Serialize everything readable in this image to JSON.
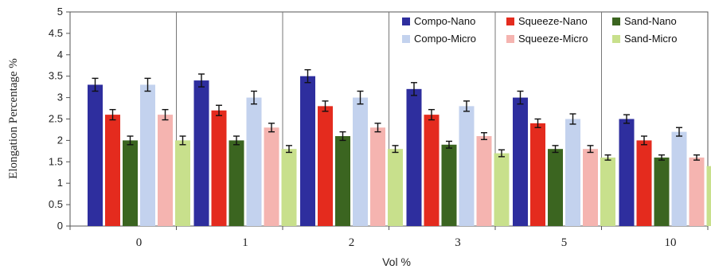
{
  "chart_data": {
    "type": "bar",
    "title": "",
    "xlabel": "Vol %",
    "ylabel": "Elongation Percentage %",
    "ylim": [
      0,
      5
    ],
    "yticks": [
      "0",
      "0.5",
      "1",
      "1.5",
      "2",
      "2.5",
      "3",
      "3.5",
      "4",
      "4.5",
      "5"
    ],
    "ytick_values": [
      0,
      0.5,
      1,
      1.5,
      2,
      2.5,
      3,
      3.5,
      4,
      4.5,
      5
    ],
    "grid": "vertical separators between categories",
    "legend_position": "top-right",
    "categories": [
      "0",
      "1",
      "2",
      "3",
      "5",
      "10"
    ],
    "series": [
      {
        "name": "Compo-Nano",
        "color": "#2e2e9e",
        "values": [
          3.3,
          3.4,
          3.5,
          3.2,
          3.0,
          2.5
        ],
        "errors": [
          0.15,
          0.15,
          0.15,
          0.15,
          0.15,
          0.1
        ]
      },
      {
        "name": "Squeeze-Nano",
        "color": "#e42b1e",
        "values": [
          2.6,
          2.7,
          2.8,
          2.6,
          2.4,
          2.0
        ],
        "errors": [
          0.12,
          0.12,
          0.12,
          0.12,
          0.1,
          0.1
        ]
      },
      {
        "name": "Sand-Nano",
        "color": "#3b6520",
        "values": [
          2.0,
          2.0,
          2.1,
          1.9,
          1.8,
          1.6
        ],
        "errors": [
          0.1,
          0.1,
          0.1,
          0.08,
          0.08,
          0.06
        ]
      },
      {
        "name": "Compo-Micro",
        "color": "#c3d2ee",
        "values": [
          3.3,
          3.0,
          3.0,
          2.8,
          2.5,
          2.2
        ],
        "errors": [
          0.15,
          0.15,
          0.15,
          0.12,
          0.12,
          0.1
        ]
      },
      {
        "name": "Squeeze-Micro",
        "color": "#f5b4b0",
        "values": [
          2.6,
          2.3,
          2.3,
          2.1,
          1.8,
          1.6
        ],
        "errors": [
          0.12,
          0.1,
          0.1,
          0.08,
          0.08,
          0.06
        ]
      },
      {
        "name": "Sand-Micro",
        "color": "#c8e08c",
        "values": [
          2.0,
          1.8,
          1.8,
          1.7,
          1.6,
          1.4
        ],
        "errors": [
          0.1,
          0.08,
          0.08,
          0.08,
          0.06,
          0.06
        ]
      }
    ]
  }
}
